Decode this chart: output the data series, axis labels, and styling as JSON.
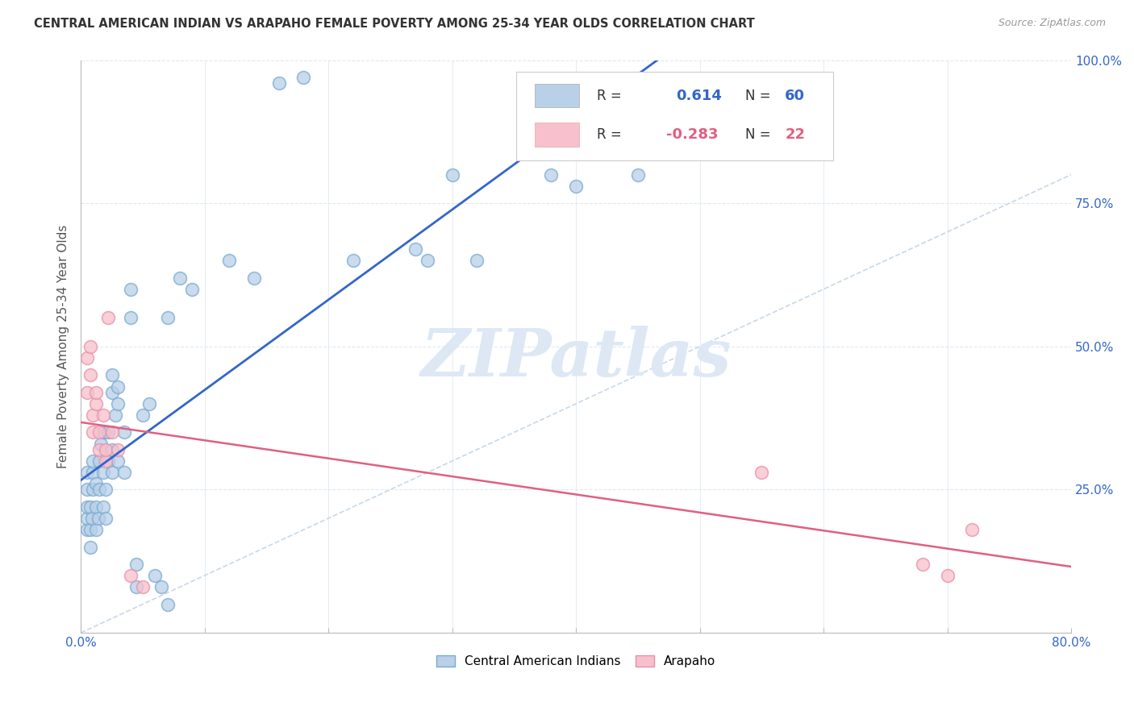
{
  "title": "CENTRAL AMERICAN INDIAN VS ARAPAHO FEMALE POVERTY AMONG 25-34 YEAR OLDS CORRELATION CHART",
  "source": "Source: ZipAtlas.com",
  "ylabel": "Female Poverty Among 25-34 Year Olds",
  "xlim": [
    0.0,
    0.8
  ],
  "ylim": [
    0.0,
    1.0
  ],
  "blue_R": 0.614,
  "blue_N": 60,
  "pink_R": -0.283,
  "pink_N": 22,
  "blue_face_color": "#b8d0e8",
  "blue_edge_color": "#7aaad0",
  "pink_face_color": "#f8c0cc",
  "pink_edge_color": "#e890a8",
  "blue_line_color": "#3366cc",
  "pink_line_color": "#e06080",
  "ref_line_color": "#c8d8e8",
  "tick_label_color": "#3366cc",
  "watermark": "ZIPatlas",
  "blue_dots": [
    [
      0.005,
      0.18
    ],
    [
      0.005,
      0.2
    ],
    [
      0.005,
      0.22
    ],
    [
      0.005,
      0.25
    ],
    [
      0.005,
      0.28
    ],
    [
      0.008,
      0.15
    ],
    [
      0.008,
      0.18
    ],
    [
      0.008,
      0.22
    ],
    [
      0.009,
      0.2
    ],
    [
      0.01,
      0.25
    ],
    [
      0.01,
      0.28
    ],
    [
      0.01,
      0.3
    ],
    [
      0.012,
      0.18
    ],
    [
      0.012,
      0.22
    ],
    [
      0.012,
      0.26
    ],
    [
      0.014,
      0.2
    ],
    [
      0.015,
      0.25
    ],
    [
      0.015,
      0.3
    ],
    [
      0.016,
      0.33
    ],
    [
      0.018,
      0.22
    ],
    [
      0.018,
      0.28
    ],
    [
      0.019,
      0.35
    ],
    [
      0.02,
      0.2
    ],
    [
      0.02,
      0.25
    ],
    [
      0.022,
      0.3
    ],
    [
      0.022,
      0.35
    ],
    [
      0.025,
      0.28
    ],
    [
      0.025,
      0.32
    ],
    [
      0.025,
      0.42
    ],
    [
      0.025,
      0.45
    ],
    [
      0.028,
      0.38
    ],
    [
      0.03,
      0.3
    ],
    [
      0.03,
      0.4
    ],
    [
      0.03,
      0.43
    ],
    [
      0.035,
      0.28
    ],
    [
      0.035,
      0.35
    ],
    [
      0.04,
      0.55
    ],
    [
      0.04,
      0.6
    ],
    [
      0.045,
      0.08
    ],
    [
      0.045,
      0.12
    ],
    [
      0.05,
      0.38
    ],
    [
      0.055,
      0.4
    ],
    [
      0.06,
      0.1
    ],
    [
      0.065,
      0.08
    ],
    [
      0.07,
      0.05
    ],
    [
      0.07,
      0.55
    ],
    [
      0.08,
      0.62
    ],
    [
      0.09,
      0.6
    ],
    [
      0.12,
      0.65
    ],
    [
      0.14,
      0.62
    ],
    [
      0.16,
      0.96
    ],
    [
      0.18,
      0.97
    ],
    [
      0.22,
      0.65
    ],
    [
      0.27,
      0.67
    ],
    [
      0.28,
      0.65
    ],
    [
      0.3,
      0.8
    ],
    [
      0.32,
      0.65
    ],
    [
      0.38,
      0.8
    ],
    [
      0.4,
      0.78
    ],
    [
      0.45,
      0.8
    ]
  ],
  "pink_dots": [
    [
      0.005,
      0.42
    ],
    [
      0.005,
      0.48
    ],
    [
      0.008,
      0.45
    ],
    [
      0.008,
      0.5
    ],
    [
      0.01,
      0.35
    ],
    [
      0.01,
      0.38
    ],
    [
      0.012,
      0.4
    ],
    [
      0.012,
      0.42
    ],
    [
      0.015,
      0.32
    ],
    [
      0.015,
      0.35
    ],
    [
      0.018,
      0.38
    ],
    [
      0.02,
      0.3
    ],
    [
      0.02,
      0.32
    ],
    [
      0.022,
      0.55
    ],
    [
      0.025,
      0.35
    ],
    [
      0.03,
      0.32
    ],
    [
      0.04,
      0.1
    ],
    [
      0.05,
      0.08
    ],
    [
      0.55,
      0.28
    ],
    [
      0.68,
      0.12
    ],
    [
      0.7,
      0.1
    ],
    [
      0.72,
      0.18
    ]
  ],
  "watermark_color": "#dde8f4",
  "background_color": "#ffffff",
  "grid_color": "#e0e8f0"
}
